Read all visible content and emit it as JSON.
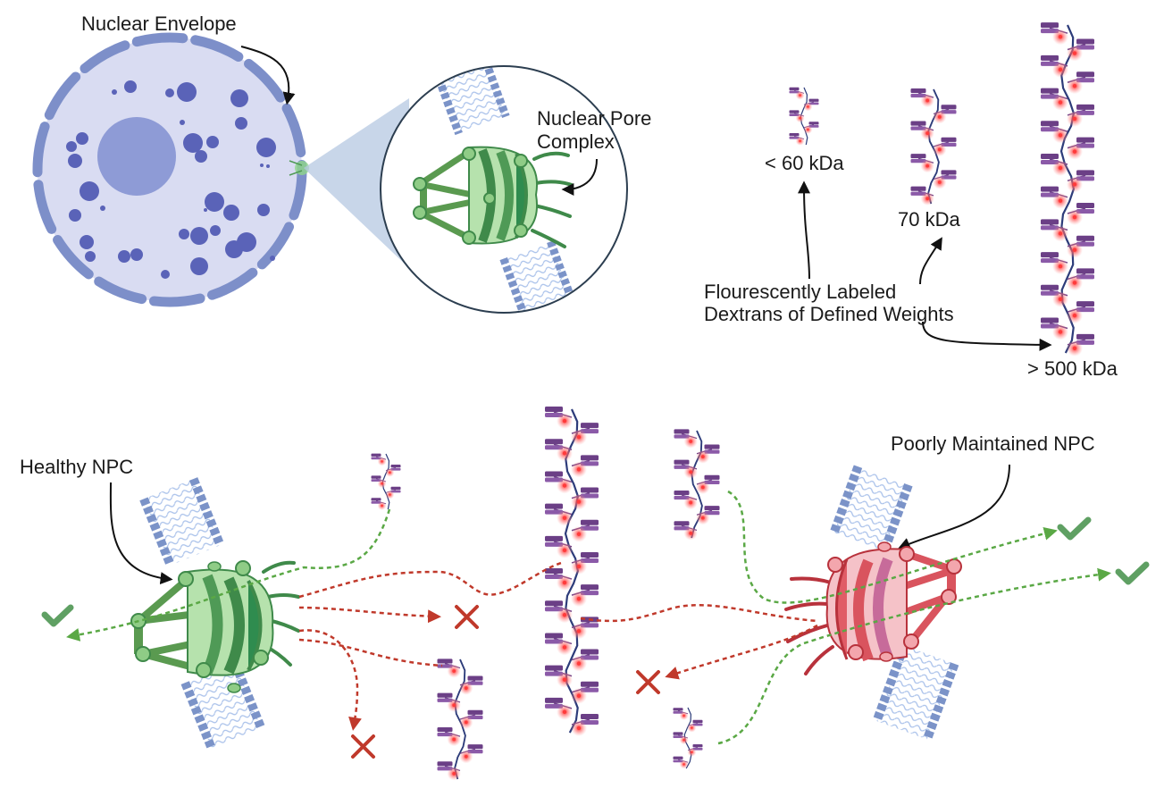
{
  "labels": {
    "nuclear_envelope": "Nuclear Envelope",
    "nuclear_pore_line1": "Nuclear Pore",
    "nuclear_pore_line2": "Complex",
    "dextran_small": "< 60 kDa",
    "dextran_mid": "70 kDa",
    "dextran_large": "> 500 kDa",
    "dextran_caption_line1": "Flourescently Labeled",
    "dextran_caption_line2": "Dextrans of Defined Weights",
    "healthy_npc": "Healthy NPC",
    "poor_npc": "Poorly Maintained NPC"
  },
  "colors": {
    "nucleus_fill": "#d9dcf2",
    "nucleus_envelope": "#7d8fc9",
    "nucleolus": "#8e9bd6",
    "vesicle": "#5a63b8",
    "healthy_npc": "#4f9a56",
    "poor_npc": "#d9545e",
    "dextran_backbone": "#2d3c7a",
    "dextran_branch": "#6b3f86",
    "fluorophore": "#ff3b3b",
    "pass_arrow": "#5aa845",
    "block_arrow": "#c0392b",
    "check_mark": "#5fa063",
    "cross_mark": "#c0392b",
    "membrane": "#7b93c8",
    "lipid_tail": "#a9c1ea"
  },
  "icons": [
    "check-icon",
    "cross-icon"
  ]
}
